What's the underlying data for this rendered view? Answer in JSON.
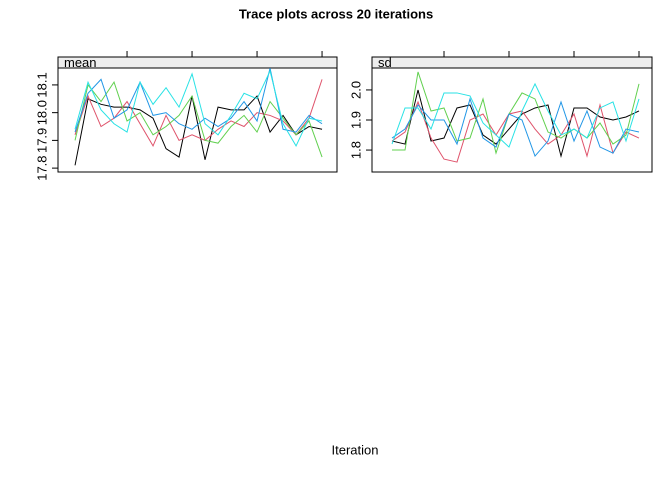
{
  "title": "Trace plots across 20 iterations",
  "xlabel": "Iteration",
  "chart_data": [
    {
      "type": "line",
      "strip": "mean",
      "x": [
        1,
        2,
        3,
        4,
        5,
        6,
        7,
        8,
        9,
        10,
        11,
        12,
        13,
        14,
        15,
        16,
        17,
        18,
        19,
        20
      ],
      "xlim": [
        -0.31,
        21.15
      ],
      "xticks": [
        5,
        10,
        15,
        20
      ],
      "ylim": [
        17.786,
        18.161
      ],
      "yticks": [
        17.8,
        17.9,
        {
          "value": 18.0,
          "label": "18.0"
        },
        18.1
      ],
      "series": [
        {
          "color": "#000000",
          "values": [
            17.81,
            18.05,
            18.03,
            18.02,
            18.02,
            18.01,
            17.98,
            17.87,
            17.84,
            18.06,
            17.83,
            18.02,
            18.01,
            18.01,
            18.06,
            17.93,
            17.99,
            17.92,
            17.95,
            17.94
          ]
        },
        {
          "color": "#DF536B",
          "values": [
            17.92,
            18.06,
            17.95,
            17.98,
            18.04,
            17.96,
            17.88,
            17.99,
            17.9,
            17.92,
            17.9,
            17.94,
            17.97,
            17.95,
            18.0,
            17.99,
            17.97,
            17.92,
            17.98,
            18.12
          ]
        },
        {
          "color": "#61D04F",
          "values": [
            17.9,
            18.1,
            18.04,
            18.11,
            17.97,
            18.0,
            17.92,
            17.95,
            17.99,
            18.06,
            17.9,
            17.89,
            17.95,
            17.99,
            17.93,
            18.04,
            17.98,
            17.92,
            17.97,
            17.84
          ]
        },
        {
          "color": "#2297E6",
          "values": [
            17.93,
            18.07,
            18.12,
            17.98,
            18.01,
            18.11,
            17.99,
            18.0,
            17.96,
            17.94,
            17.98,
            17.95,
            17.98,
            18.04,
            17.97,
            18.16,
            17.94,
            17.93,
            17.99,
            17.96
          ]
        },
        {
          "color": "#28E2E5",
          "values": [
            17.94,
            18.11,
            18.01,
            17.96,
            17.93,
            18.11,
            18.03,
            18.09,
            18.02,
            18.14,
            17.96,
            17.92,
            17.99,
            18.07,
            18.05,
            18.15,
            17.96,
            17.88,
            17.98,
            17.97
          ]
        }
      ]
    },
    {
      "type": "line",
      "strip": "sd",
      "x": [
        1,
        2,
        3,
        4,
        5,
        6,
        7,
        8,
        9,
        10,
        11,
        12,
        13,
        14,
        15,
        16,
        17,
        18,
        19,
        20
      ],
      "xlim": [
        -0.54,
        21.0
      ],
      "xticks": [
        5,
        10,
        15,
        20
      ],
      "ylim": [
        1.727,
        2.073
      ],
      "yticks": [
        1.8,
        1.9,
        {
          "value": 2.0,
          "label": "2.0"
        }
      ],
      "series": [
        {
          "color": "#000000",
          "values": [
            1.83,
            1.82,
            2.0,
            1.83,
            1.84,
            1.94,
            1.95,
            1.85,
            1.82,
            1.87,
            1.92,
            1.94,
            1.95,
            1.78,
            1.94,
            1.94,
            1.91,
            1.9,
            1.91,
            1.93
          ]
        },
        {
          "color": "#DF536B",
          "values": [
            1.83,
            1.86,
            1.96,
            1.84,
            1.77,
            1.76,
            1.9,
            1.92,
            1.85,
            1.92,
            1.93,
            1.87,
            1.82,
            1.85,
            1.92,
            1.78,
            1.95,
            1.79,
            1.86,
            1.84
          ]
        },
        {
          "color": "#61D04F",
          "values": [
            1.8,
            1.8,
            2.06,
            1.93,
            1.94,
            1.83,
            1.84,
            1.97,
            1.79,
            1.92,
            1.99,
            1.97,
            1.86,
            1.84,
            1.87,
            1.84,
            1.89,
            1.82,
            1.85,
            2.02
          ]
        },
        {
          "color": "#2297E6",
          "values": [
            1.84,
            1.87,
            1.95,
            1.9,
            1.9,
            1.82,
            1.97,
            1.84,
            1.81,
            1.92,
            1.9,
            1.78,
            1.83,
            1.96,
            1.83,
            1.93,
            1.81,
            1.79,
            1.87,
            1.86
          ]
        },
        {
          "color": "#28E2E5",
          "values": [
            1.82,
            1.94,
            1.94,
            1.87,
            1.99,
            1.99,
            1.98,
            1.89,
            1.85,
            1.81,
            1.93,
            2.02,
            1.93,
            1.85,
            1.87,
            1.84,
            1.94,
            1.96,
            1.83,
            1.97
          ]
        }
      ]
    }
  ]
}
